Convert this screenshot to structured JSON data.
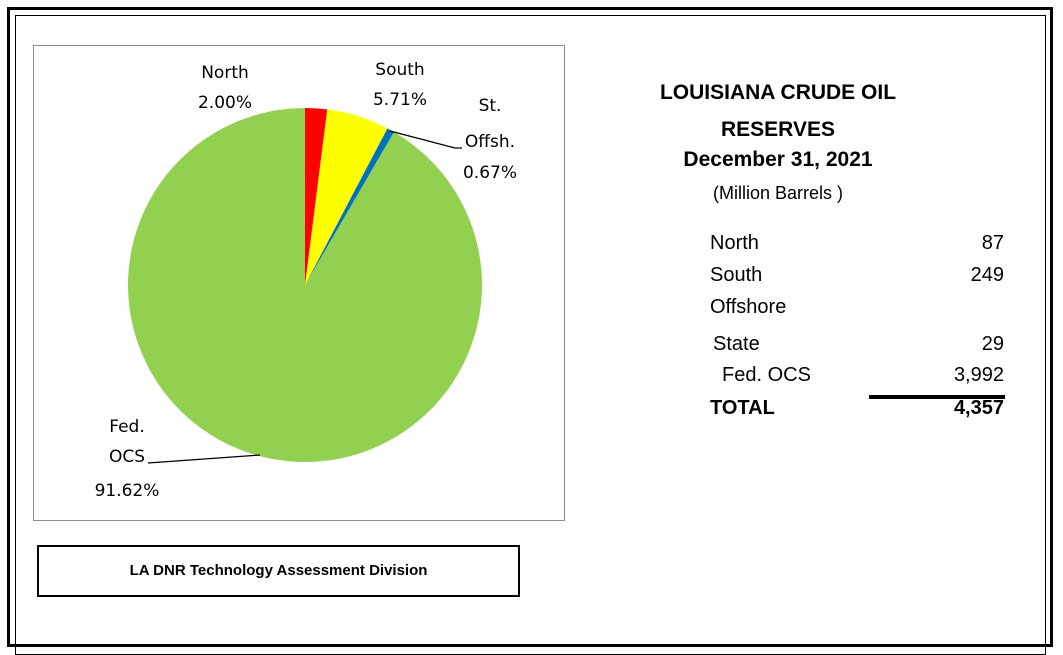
{
  "chart_data": {
    "type": "pie",
    "categories": [
      "North",
      "South",
      "St. Offsh.",
      "Fed. OCS"
    ],
    "values": [
      2.0,
      5.71,
      0.67,
      91.62
    ],
    "value_labels": [
      "2.00%",
      "5.71%",
      "0.67%",
      "91.62%"
    ],
    "colors": [
      "#ff0000",
      "#ffff00",
      "#0070c0",
      "#92d050"
    ]
  },
  "info": {
    "title": "LOUISIANA CRUDE OIL RESERVES",
    "date": "December 31, 2021",
    "unit": "(Million Barrels )"
  },
  "table": {
    "rows": [
      [
        "North",
        "87"
      ],
      [
        "South",
        "249"
      ],
      [
        "Offshore"
      ],
      [
        "State",
        "29"
      ],
      [
        "Fed. OCS",
        "3,992"
      ],
      [
        "TOTAL",
        "4,357"
      ]
    ]
  },
  "footer": "LA DNR Technology Assessment Division"
}
